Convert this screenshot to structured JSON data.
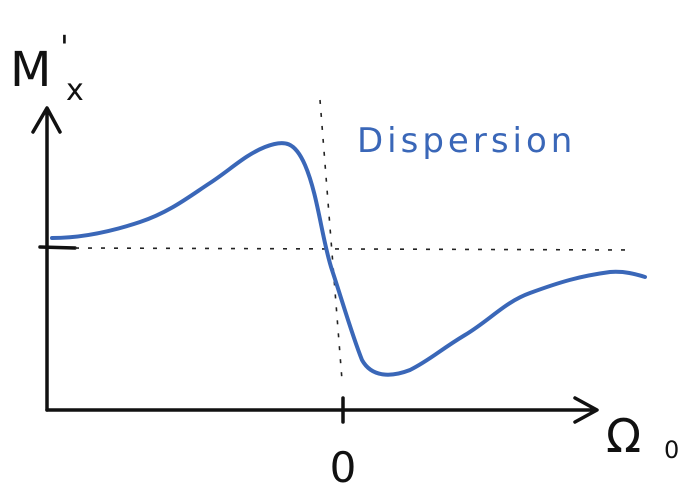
{
  "y_label": {
    "base": "M",
    "sup": "'",
    "sub": "x"
  },
  "x_label": {
    "base": "Ω",
    "sub": "0"
  },
  "x_tick": "0",
  "annotation": "Dispersion"
}
